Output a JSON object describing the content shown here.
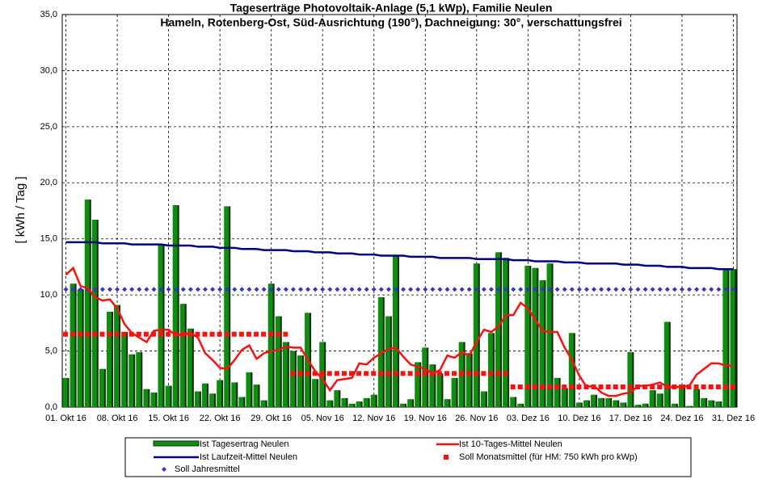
{
  "chart_data": {
    "type": "bar",
    "title": "Tageserträge Photovoltaik-Anlage (5,1 kWp),  Familie Neulen",
    "subtitle": "Hameln, Rotenberg-Ost, Süd-Ausrichtung (190°), Dachneigung: 30°, verschattungsfrei",
    "y_label": "[ kWh / Tag ]",
    "categories": [
      "01. Okt 16",
      null,
      null,
      null,
      null,
      null,
      null,
      "08. Okt 16",
      null,
      null,
      null,
      null,
      null,
      null,
      "15. Okt 16",
      null,
      null,
      null,
      null,
      null,
      null,
      "22. Okt 16",
      null,
      null,
      null,
      null,
      null,
      null,
      "29. Okt 16",
      null,
      null,
      null,
      null,
      null,
      null,
      "05. Nov 16",
      null,
      null,
      null,
      null,
      null,
      null,
      "12. Nov 16",
      null,
      null,
      null,
      null,
      null,
      null,
      "19. Nov 16",
      null,
      null,
      null,
      null,
      null,
      null,
      "26. Nov 16",
      null,
      null,
      null,
      null,
      null,
      null,
      "03. Dez 16",
      null,
      null,
      null,
      null,
      null,
      null,
      "10. Dez 16",
      null,
      null,
      null,
      null,
      null,
      null,
      "17. Dez 16",
      null,
      null,
      null,
      null,
      null,
      null,
      "24. Dez 16",
      null,
      null,
      null,
      null,
      null,
      null,
      "31. Dez 16"
    ],
    "ylim": [
      0,
      35
    ],
    "yticks": [
      {
        "value": 0,
        "label": "0,0"
      },
      {
        "value": 5,
        "label": "5,0"
      },
      {
        "value": 10,
        "label": "10,0"
      },
      {
        "value": 15,
        "label": "15,0"
      },
      {
        "value": 20,
        "label": "20,0"
      },
      {
        "value": 25,
        "label": "25,0"
      },
      {
        "value": 30,
        "label": "30,0"
      },
      {
        "value": 35,
        "label": "35,0"
      }
    ],
    "grid": true,
    "series": [
      {
        "name": "Ist Tagesertrag Neulen",
        "style": "bar",
        "color": "#108c10",
        "values": [
          2.6,
          11,
          10.5,
          18.5,
          16.7,
          3.4,
          8.5,
          9.1,
          6.7,
          4.7,
          4.9,
          1.6,
          1.3,
          14.5,
          1.9,
          18.0,
          9.2,
          7.0,
          1.4,
          2.1,
          1.2,
          2.4,
          17.9,
          2.2,
          0.9,
          3.1,
          2.0,
          0.6,
          11.0,
          8.1,
          5.8,
          5.0,
          4.6,
          8.4,
          2.5,
          5.8,
          0.6,
          1.5,
          0.8,
          0.3,
          0.5,
          0.8,
          1.1,
          9.8,
          8.1,
          13.5,
          0.3,
          0.7,
          4.0,
          5.3,
          3.8,
          3.0,
          0.7,
          2.6,
          5.8,
          4.8,
          12.8,
          1.4,
          6.6,
          13.8,
          13.3,
          0.9,
          0.3,
          12.6,
          12.4,
          11.3,
          12.8,
          2.6,
          1.7,
          6.6,
          0.4,
          0.6,
          1.1,
          0.8,
          0.8,
          0.6,
          0.4,
          4.9,
          0.2,
          0.3,
          1.5,
          1.2,
          7.6,
          0.3,
          2.0,
          0.1,
          1.6,
          0.8,
          0.6,
          0.5,
          12.2,
          12.3
        ]
      },
      {
        "name": "Ist 10-Tages-Mittel Neulen",
        "style": "line",
        "color": "#ff1010",
        "values": [
          11.8,
          12.4,
          10.8,
          10.6,
          9.8,
          9.5,
          9.6,
          8.8,
          7.4,
          6.6,
          6.2,
          5.8,
          6.8,
          6.9,
          6.9,
          6.4,
          6.5,
          6.6,
          6.2,
          4.8,
          4.2,
          3.5,
          3.4,
          4.2,
          5.1,
          5.5,
          4.3,
          4.8,
          5.0,
          5.1,
          5.4,
          5.3,
          5.3,
          4.2,
          3.2,
          2.5,
          1.5,
          2.4,
          2.5,
          2.6,
          3.9,
          3.8,
          4.4,
          4.8,
          5.2,
          5.3,
          4.5,
          3.8,
          3.6,
          3.4,
          3.0,
          3.3,
          4.6,
          4.4,
          4.9,
          4.6,
          5.8,
          6.9,
          6.7,
          7.2,
          8.2,
          8.2,
          9.3,
          8.8,
          7.8,
          6.8,
          6.7,
          6.7,
          5.3,
          4.2,
          2.8,
          1.8,
          1.9,
          1.3,
          1.0,
          1.0,
          1.2,
          1.3,
          1.9,
          1.9,
          2.0,
          2.2,
          1.8,
          1.8,
          1.8,
          1.9,
          2.9,
          3.4,
          3.9,
          3.9,
          3.7,
          3.7
        ]
      },
      {
        "name": "Ist Laufzeit-Mittel Neulen",
        "style": "line",
        "color": "#000080",
        "values": [
          14.7,
          14.7,
          14.7,
          14.7,
          14.7,
          14.6,
          14.6,
          14.6,
          14.6,
          14.5,
          14.5,
          14.5,
          14.5,
          14.5,
          14.4,
          14.4,
          14.4,
          14.4,
          14.3,
          14.3,
          14.3,
          14.2,
          14.2,
          14.2,
          14.1,
          14.1,
          14.1,
          14.0,
          14.0,
          14.0,
          14.0,
          13.9,
          13.9,
          13.9,
          13.8,
          13.8,
          13.8,
          13.7,
          13.7,
          13.7,
          13.6,
          13.6,
          13.6,
          13.5,
          13.5,
          13.5,
          13.5,
          13.4,
          13.4,
          13.4,
          13.4,
          13.3,
          13.3,
          13.3,
          13.3,
          13.3,
          13.2,
          13.2,
          13.2,
          13.2,
          13.2,
          13.1,
          13.1,
          13.1,
          13.0,
          13.0,
          13.0,
          13.0,
          12.9,
          12.9,
          12.9,
          12.8,
          12.8,
          12.8,
          12.8,
          12.8,
          12.7,
          12.7,
          12.7,
          12.6,
          12.6,
          12.6,
          12.5,
          12.5,
          12.5,
          12.4,
          12.4,
          12.4,
          12.4,
          12.3,
          12.3,
          12.3
        ]
      },
      {
        "name": "Soll Monatsmittel (für HM: 750 kWh pro kWp)",
        "style": "square",
        "color": "#ff1010",
        "values": [
          6.5,
          6.5,
          6.5,
          6.5,
          6.5,
          6.5,
          6.5,
          6.5,
          6.5,
          6.5,
          6.5,
          6.5,
          6.5,
          6.5,
          6.5,
          6.5,
          6.5,
          6.5,
          6.5,
          6.5,
          6.5,
          6.5,
          6.5,
          6.5,
          6.5,
          6.5,
          6.5,
          6.5,
          6.5,
          6.5,
          6.5,
          3.0,
          3.0,
          3.0,
          3.0,
          3.0,
          3.0,
          3.0,
          3.0,
          3.0,
          3.0,
          3.0,
          3.0,
          3.0,
          3.0,
          3.0,
          3.0,
          3.0,
          3.0,
          3.0,
          3.0,
          3.0,
          3.0,
          3.0,
          3.0,
          3.0,
          3.0,
          3.0,
          3.0,
          3.0,
          3.0,
          1.8,
          1.8,
          1.8,
          1.8,
          1.8,
          1.8,
          1.8,
          1.8,
          1.8,
          1.8,
          1.8,
          1.8,
          1.8,
          1.8,
          1.8,
          1.8,
          1.8,
          1.8,
          1.8,
          1.8,
          1.8,
          1.8,
          1.8,
          1.8,
          1.8,
          1.8,
          1.8,
          1.8,
          1.8,
          1.8,
          1.8
        ]
      },
      {
        "name": "Soll Jahresmittel",
        "style": "diamond",
        "color": "#3535c8",
        "values": [
          10.5,
          10.5,
          10.5,
          10.5,
          10.5,
          10.5,
          10.5,
          10.5,
          10.5,
          10.5,
          10.5,
          10.5,
          10.5,
          10.5,
          10.5,
          10.5,
          10.5,
          10.5,
          10.5,
          10.5,
          10.5,
          10.5,
          10.5,
          10.5,
          10.5,
          10.5,
          10.5,
          10.5,
          10.5,
          10.5,
          10.5,
          10.5,
          10.5,
          10.5,
          10.5,
          10.5,
          10.5,
          10.5,
          10.5,
          10.5,
          10.5,
          10.5,
          10.5,
          10.5,
          10.5,
          10.5,
          10.5,
          10.5,
          10.5,
          10.5,
          10.5,
          10.5,
          10.5,
          10.5,
          10.5,
          10.5,
          10.5,
          10.5,
          10.5,
          10.5,
          10.5,
          10.5,
          10.5,
          10.5,
          10.5,
          10.5,
          10.5,
          10.5,
          10.5,
          10.5,
          10.5,
          10.5,
          10.5,
          10.5,
          10.5,
          10.5,
          10.5,
          10.5,
          10.5,
          10.5,
          10.5,
          10.5,
          10.5,
          10.5,
          10.5,
          10.5,
          10.5,
          10.5,
          10.5,
          10.5,
          10.5,
          10.5
        ]
      }
    ]
  }
}
